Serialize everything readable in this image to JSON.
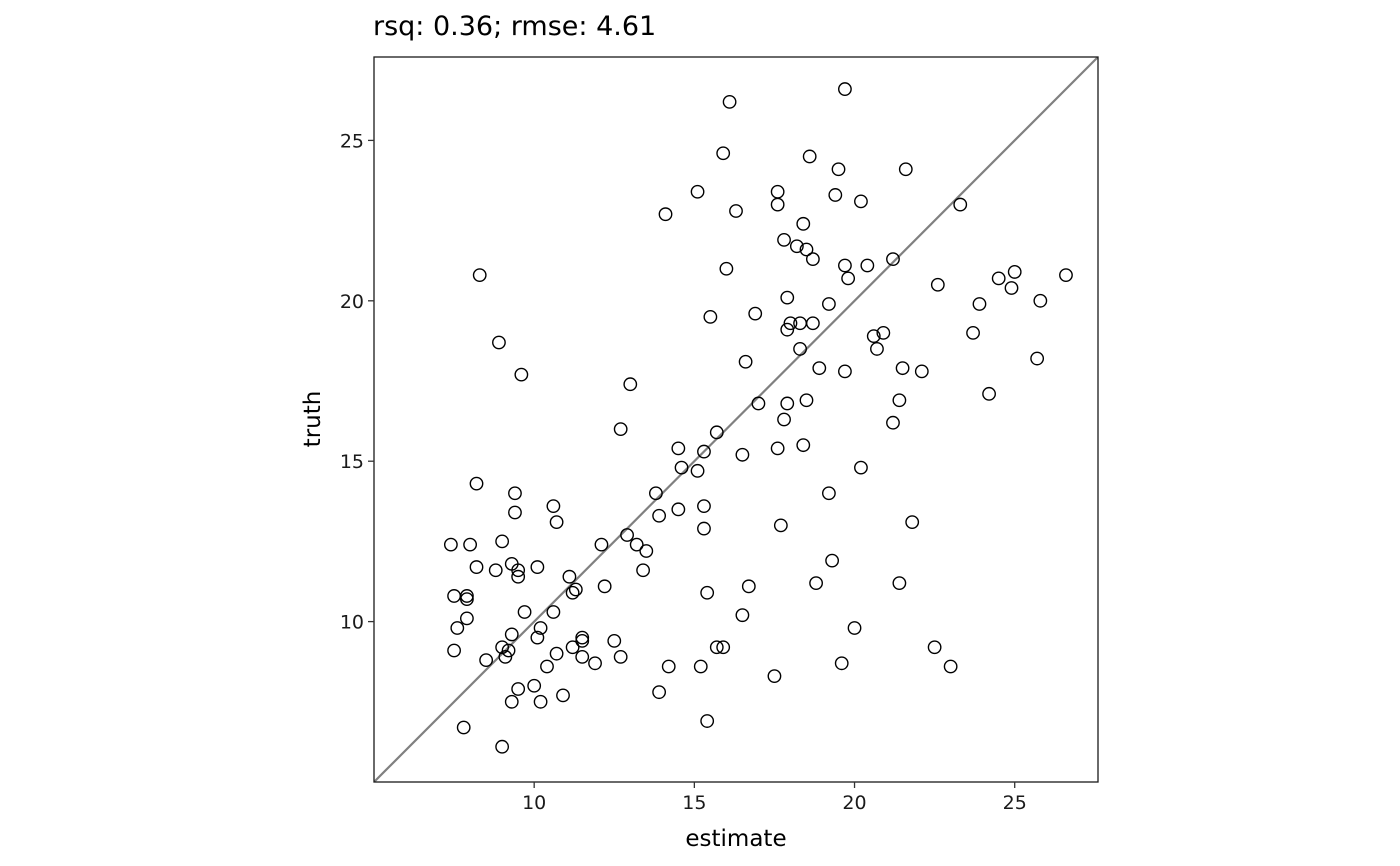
{
  "chart_data": {
    "type": "scatter",
    "title": "rsq: 0.36; rmse: 4.61",
    "xlabel": "estimate",
    "ylabel": "truth",
    "xlim": [
      5.0,
      27.6
    ],
    "ylim": [
      5.0,
      27.6
    ],
    "xticks": [
      10,
      15,
      20,
      25
    ],
    "yticks": [
      10,
      15,
      20,
      25
    ],
    "xtick_labels": [
      "10",
      "15",
      "20",
      "25"
    ],
    "ytick_labels": [
      "10",
      "15",
      "20",
      "25"
    ],
    "grid": false,
    "reference_line": {
      "slope": 1,
      "intercept": 0,
      "color": "#808080"
    },
    "point_style": {
      "shape": "open-circle",
      "stroke": "#000000"
    },
    "points": [
      [
        16.1,
        26.2
      ],
      [
        19.7,
        26.6
      ],
      [
        15.9,
        24.6
      ],
      [
        18.6,
        24.5
      ],
      [
        19.5,
        24.1
      ],
      [
        21.6,
        24.1
      ],
      [
        15.1,
        23.4
      ],
      [
        17.6,
        23.4
      ],
      [
        19.4,
        23.3
      ],
      [
        17.6,
        23.0
      ],
      [
        20.2,
        23.1
      ],
      [
        23.3,
        23.0
      ],
      [
        14.1,
        22.7
      ],
      [
        16.3,
        22.8
      ],
      [
        18.4,
        22.4
      ],
      [
        17.8,
        21.9
      ],
      [
        18.2,
        21.7
      ],
      [
        18.5,
        21.6
      ],
      [
        18.7,
        21.3
      ],
      [
        19.7,
        21.1
      ],
      [
        20.4,
        21.1
      ],
      [
        21.2,
        21.3
      ],
      [
        8.3,
        20.8
      ],
      [
        16.0,
        21.0
      ],
      [
        19.8,
        20.7
      ],
      [
        22.6,
        20.5
      ],
      [
        24.5,
        20.7
      ],
      [
        25.0,
        20.9
      ],
      [
        26.6,
        20.8
      ],
      [
        24.9,
        20.4
      ],
      [
        25.8,
        20.0
      ],
      [
        17.9,
        20.1
      ],
      [
        23.9,
        19.9
      ],
      [
        19.2,
        19.9
      ],
      [
        15.5,
        19.5
      ],
      [
        16.9,
        19.6
      ],
      [
        18.3,
        19.3
      ],
      [
        18.0,
        19.3
      ],
      [
        17.9,
        19.1
      ],
      [
        18.7,
        19.3
      ],
      [
        20.6,
        18.9
      ],
      [
        20.9,
        19.0
      ],
      [
        23.7,
        19.0
      ],
      [
        8.9,
        18.7
      ],
      [
        18.3,
        18.5
      ],
      [
        20.7,
        18.5
      ],
      [
        16.6,
        18.1
      ],
      [
        25.7,
        18.2
      ],
      [
        9.6,
        17.7
      ],
      [
        18.9,
        17.9
      ],
      [
        19.7,
        17.8
      ],
      [
        21.5,
        17.9
      ],
      [
        22.1,
        17.8
      ],
      [
        13.0,
        17.4
      ],
      [
        24.2,
        17.1
      ],
      [
        17.0,
        16.8
      ],
      [
        17.9,
        16.8
      ],
      [
        18.5,
        16.9
      ],
      [
        21.4,
        16.9
      ],
      [
        17.8,
        16.3
      ],
      [
        21.2,
        16.2
      ],
      [
        12.7,
        16.0
      ],
      [
        15.7,
        15.9
      ],
      [
        14.5,
        15.4
      ],
      [
        15.3,
        15.3
      ],
      [
        17.6,
        15.4
      ],
      [
        18.4,
        15.5
      ],
      [
        16.5,
        15.2
      ],
      [
        14.6,
        14.8
      ],
      [
        15.1,
        14.7
      ],
      [
        20.2,
        14.8
      ],
      [
        8.2,
        14.3
      ],
      [
        9.4,
        14.0
      ],
      [
        13.8,
        14.0
      ],
      [
        19.2,
        14.0
      ],
      [
        10.6,
        13.6
      ],
      [
        15.3,
        13.6
      ],
      [
        9.4,
        13.4
      ],
      [
        14.5,
        13.5
      ],
      [
        13.9,
        13.3
      ],
      [
        10.7,
        13.1
      ],
      [
        17.7,
        13.0
      ],
      [
        21.8,
        13.1
      ],
      [
        15.3,
        12.9
      ],
      [
        12.9,
        12.7
      ],
      [
        7.4,
        12.4
      ],
      [
        8.0,
        12.4
      ],
      [
        9.0,
        12.5
      ],
      [
        12.1,
        12.4
      ],
      [
        13.2,
        12.4
      ],
      [
        13.5,
        12.2
      ],
      [
        9.3,
        11.8
      ],
      [
        8.2,
        11.7
      ],
      [
        9.5,
        11.6
      ],
      [
        10.1,
        11.7
      ],
      [
        13.4,
        11.6
      ],
      [
        19.3,
        11.9
      ],
      [
        8.8,
        11.6
      ],
      [
        9.5,
        11.4
      ],
      [
        11.1,
        11.4
      ],
      [
        16.7,
        11.1
      ],
      [
        18.8,
        11.2
      ],
      [
        21.4,
        11.2
      ],
      [
        11.2,
        10.9
      ],
      [
        11.3,
        11.0
      ],
      [
        12.2,
        11.1
      ],
      [
        15.4,
        10.9
      ],
      [
        7.5,
        10.8
      ],
      [
        7.9,
        10.8
      ],
      [
        7.9,
        10.7
      ],
      [
        9.7,
        10.3
      ],
      [
        10.6,
        10.3
      ],
      [
        7.9,
        10.1
      ],
      [
        16.5,
        10.2
      ],
      [
        7.6,
        9.8
      ],
      [
        10.2,
        9.8
      ],
      [
        20.0,
        9.8
      ],
      [
        9.3,
        9.6
      ],
      [
        10.1,
        9.5
      ],
      [
        11.5,
        9.5
      ],
      [
        11.5,
        9.4
      ],
      [
        12.5,
        9.4
      ],
      [
        9.0,
        9.2
      ],
      [
        9.2,
        9.1
      ],
      [
        11.2,
        9.2
      ],
      [
        15.7,
        9.2
      ],
      [
        15.9,
        9.2
      ],
      [
        22.5,
        9.2
      ],
      [
        7.5,
        9.1
      ],
      [
        10.7,
        9.0
      ],
      [
        9.1,
        8.9
      ],
      [
        11.5,
        8.9
      ],
      [
        12.7,
        8.9
      ],
      [
        8.5,
        8.8
      ],
      [
        10.4,
        8.6
      ],
      [
        11.9,
        8.7
      ],
      [
        14.2,
        8.6
      ],
      [
        15.2,
        8.6
      ],
      [
        19.6,
        8.7
      ],
      [
        23.0,
        8.6
      ],
      [
        17.5,
        8.3
      ],
      [
        9.5,
        7.9
      ],
      [
        10.0,
        8.0
      ],
      [
        10.9,
        7.7
      ],
      [
        13.9,
        7.8
      ],
      [
        9.3,
        7.5
      ],
      [
        10.2,
        7.5
      ],
      [
        15.4,
        6.9
      ],
      [
        7.8,
        6.7
      ],
      [
        9.0,
        6.1
      ]
    ]
  }
}
